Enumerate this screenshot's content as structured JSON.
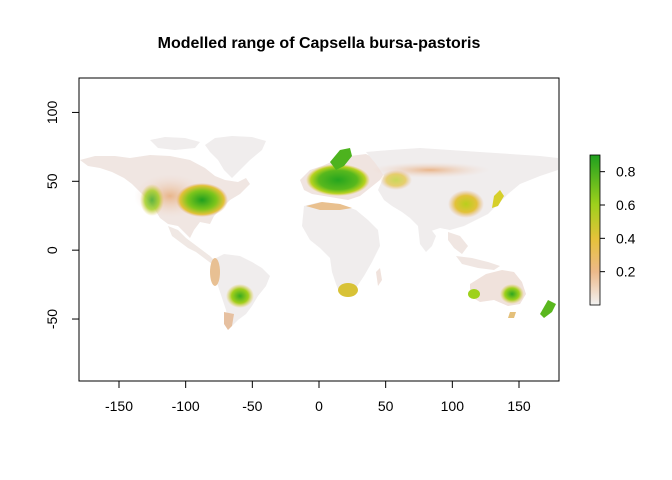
{
  "title": "Modelled range of Capsella bursa-pastoris",
  "chart_data": {
    "type": "heatmap",
    "title": "Modelled range of Capsella bursa-pastoris",
    "xlim": [
      -180,
      180
    ],
    "ylim": [
      -95,
      125
    ],
    "x_ticks": [
      -150,
      -100,
      -50,
      0,
      50,
      100,
      150
    ],
    "y_ticks": [
      -50,
      0,
      50,
      100
    ],
    "x_tick_labels": [
      "-150",
      "-100",
      "-50",
      "0",
      "50",
      "100",
      "150"
    ],
    "y_tick_labels": [
      "-50",
      "0",
      "50",
      "100"
    ],
    "legend": {
      "placement": "right",
      "range": [
        0,
        0.9
      ],
      "ticks": [
        0.2,
        0.4,
        0.6,
        0.8
      ],
      "tick_labels": [
        "0.2",
        "0.4",
        "0.6",
        "0.8"
      ],
      "color_stops": [
        {
          "value": 0.0,
          "color": "#f2f2f2"
        },
        {
          "value": 0.2,
          "color": "#edb98a"
        },
        {
          "value": 0.4,
          "color": "#e6c23a"
        },
        {
          "value": 0.6,
          "color": "#9ed11c"
        },
        {
          "value": 0.9,
          "color": "#1f9f1f"
        }
      ]
    },
    "regions": [
      {
        "name": "north-america",
        "lon": [
          -125,
          -60
        ],
        "lat": [
          25,
          55
        ],
        "value": 0.75
      },
      {
        "name": "europe",
        "lon": [
          -10,
          40
        ],
        "lat": [
          40,
          60
        ],
        "value": 0.8
      },
      {
        "name": "east-china",
        "lon": [
          105,
          125
        ],
        "lat": [
          25,
          42
        ],
        "value": 0.6
      },
      {
        "name": "south-america-southeast",
        "lon": [
          -65,
          -50
        ],
        "lat": [
          -40,
          -25
        ],
        "value": 0.7
      },
      {
        "name": "southeast-australia",
        "lon": [
          140,
          152
        ],
        "lat": [
          -40,
          -28
        ],
        "value": 0.65
      },
      {
        "name": "south-africa",
        "lon": [
          18,
          30
        ],
        "lat": [
          -34,
          -26
        ],
        "value": 0.45
      },
      {
        "name": "new-zealand",
        "lon": [
          166,
          178
        ],
        "lat": [
          -46,
          -35
        ],
        "value": 0.5
      }
    ]
  },
  "colors": {
    "background": "#ffffff",
    "land_low": "#f0eded",
    "frame": "#000000"
  }
}
